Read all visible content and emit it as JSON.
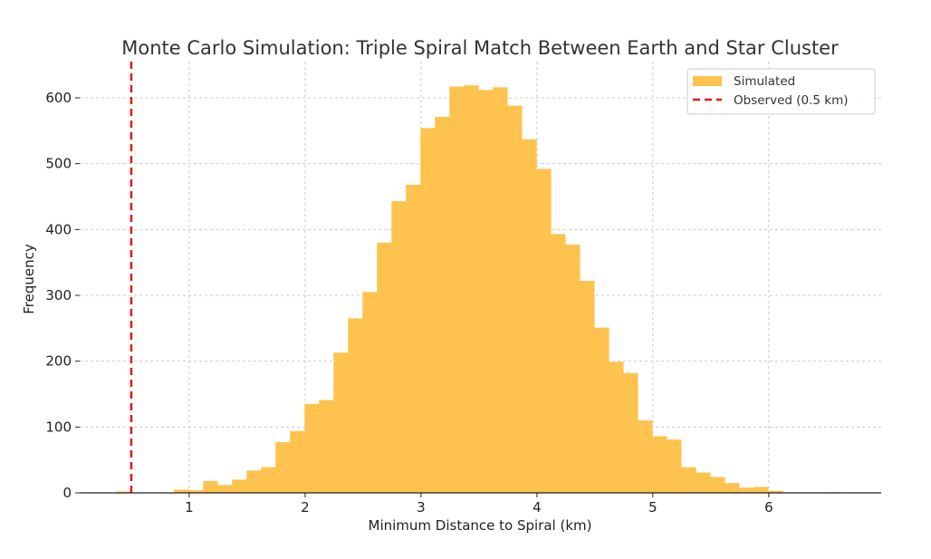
{
  "chart_data": {
    "type": "bar",
    "subtype": "histogram",
    "title": "Monte Carlo Simulation: Triple Spiral Match Between Earth and Star Cluster",
    "xlabel": "Minimum Distance to Spiral (km)",
    "ylabel": "Frequency",
    "xlim": [
      0.055,
      6.97
    ],
    "ylim": [
      0,
      655
    ],
    "xticks": [
      1,
      2,
      3,
      4,
      5,
      6
    ],
    "yticks": [
      0,
      100,
      200,
      300,
      400,
      500,
      600
    ],
    "grid": true,
    "legend_placement": "top-right",
    "bin_start": 0.37,
    "bin_width": 0.125,
    "series": [
      {
        "name": "Simulated",
        "color": "#FDC34E",
        "values": [
          2,
          0,
          0,
          0,
          5,
          4,
          18,
          12,
          20,
          34,
          39,
          77,
          94,
          135,
          141,
          213,
          265,
          305,
          380,
          443,
          468,
          554,
          571,
          617,
          619,
          612,
          616,
          588,
          537,
          492,
          393,
          377,
          322,
          251,
          199,
          182,
          110,
          86,
          81,
          39,
          31,
          24,
          15,
          8,
          9,
          3,
          0,
          0,
          0,
          1
        ]
      },
      {
        "name": "Observed (0.5 km)",
        "color": "#E8141B",
        "type": "vline",
        "x": 0.5
      }
    ]
  }
}
